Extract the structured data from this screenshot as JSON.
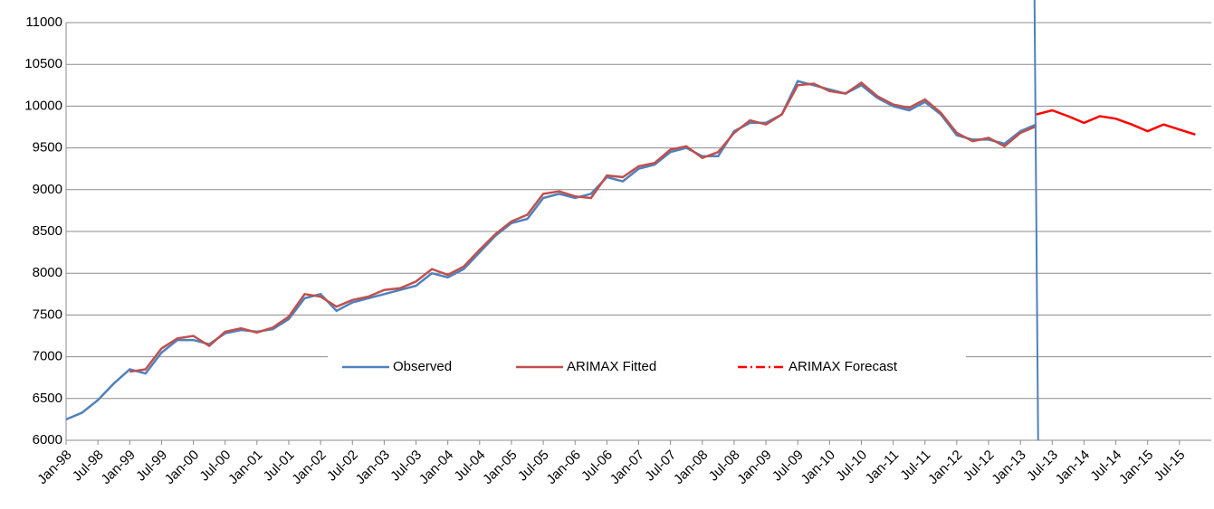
{
  "chart_data": {
    "type": "line",
    "categories": [
      "Jan-98",
      null,
      "Jul-98",
      null,
      "Jan-99",
      null,
      "Jul-99",
      null,
      "Jan-00",
      null,
      "Jul-00",
      null,
      "Jan-01",
      null,
      "Jul-01",
      null,
      "Jan-02",
      null,
      "Jul-02",
      null,
      "Jan-03",
      null,
      "Jul-03",
      null,
      "Jan-04",
      null,
      "Jul-04",
      null,
      "Jan-05",
      null,
      "Jul-05",
      null,
      "Jan-06",
      null,
      "Jul-06",
      null,
      "Jan-07",
      null,
      "Jul-07",
      null,
      "Jan-08",
      null,
      "Jul-08",
      null,
      "Jan-09",
      null,
      "Jul-09",
      null,
      "Jan-10",
      null,
      "Jul-10",
      null,
      "Jan-11",
      null,
      "Jul-11",
      null,
      "Jan-12",
      null,
      "Jul-12",
      null,
      "Jan-13",
      null,
      "Jul-13",
      null,
      "Jan-14",
      null,
      "Jul-14",
      null,
      "Jan-15",
      null,
      "Jul-15",
      null
    ],
    "series": [
      {
        "name": "Observed",
        "color": "#4f81bd",
        "values": [
          6250,
          6330,
          6480,
          6680,
          6850,
          6800,
          7050,
          7200,
          7200,
          7150,
          7280,
          7320,
          7300,
          7330,
          7450,
          7700,
          7750,
          7550,
          7650,
          7700,
          7750,
          7800,
          7850,
          8000,
          7950,
          8050,
          8250,
          8450,
          8600,
          8650,
          8900,
          8950,
          8900,
          8950,
          9150,
          9100,
          9250,
          9300,
          9450,
          9500,
          9400,
          9400,
          9700,
          9800,
          9800,
          9900,
          10300,
          10250,
          10200,
          10150,
          10250,
          10100,
          10000,
          9950,
          10050,
          9900,
          9650,
          9600,
          9600,
          9550,
          9700,
          9780,
          null,
          null,
          null,
          null,
          null,
          null,
          null,
          null,
          null,
          null
        ]
      },
      {
        "name": "ARIMAX Fitted",
        "color": "#c0504d",
        "values": [
          null,
          null,
          null,
          null,
          6820,
          6850,
          7100,
          7220,
          7250,
          7130,
          7300,
          7340,
          7290,
          7350,
          7480,
          7750,
          7720,
          7600,
          7680,
          7720,
          7800,
          7820,
          7900,
          8050,
          7980,
          8080,
          8280,
          8470,
          8620,
          8700,
          8950,
          8980,
          8920,
          8900,
          9170,
          9150,
          9280,
          9320,
          9480,
          9520,
          9380,
          9450,
          9680,
          9830,
          9780,
          9900,
          10250,
          10270,
          10180,
          10150,
          10280,
          10120,
          10020,
          9980,
          10080,
          9920,
          9680,
          9580,
          9620,
          9520,
          9680,
          9760,
          null,
          null,
          null,
          null,
          null,
          null,
          null,
          null,
          null,
          null
        ]
      },
      {
        "name": "ARIMAX Forecast",
        "color": "#ff0000",
        "dash": "10 4 2 4",
        "values": [
          null,
          null,
          null,
          null,
          null,
          null,
          null,
          null,
          null,
          null,
          null,
          null,
          null,
          null,
          null,
          null,
          null,
          null,
          null,
          null,
          null,
          null,
          null,
          null,
          null,
          null,
          null,
          null,
          null,
          null,
          null,
          null,
          null,
          null,
          null,
          null,
          null,
          null,
          null,
          null,
          null,
          null,
          null,
          null,
          null,
          null,
          null,
          null,
          null,
          null,
          null,
          null,
          null,
          null,
          null,
          null,
          null,
          null,
          null,
          null,
          null,
          9900,
          9950,
          9880,
          9800,
          9880,
          9850,
          9780,
          9700,
          9780,
          9720,
          9660
        ]
      }
    ],
    "ylim": [
      6000,
      11000
    ],
    "yticks": [
      6000,
      6500,
      7000,
      7500,
      8000,
      8500,
      9000,
      9500,
      10000,
      10500,
      11000
    ],
    "grid": true
  }
}
